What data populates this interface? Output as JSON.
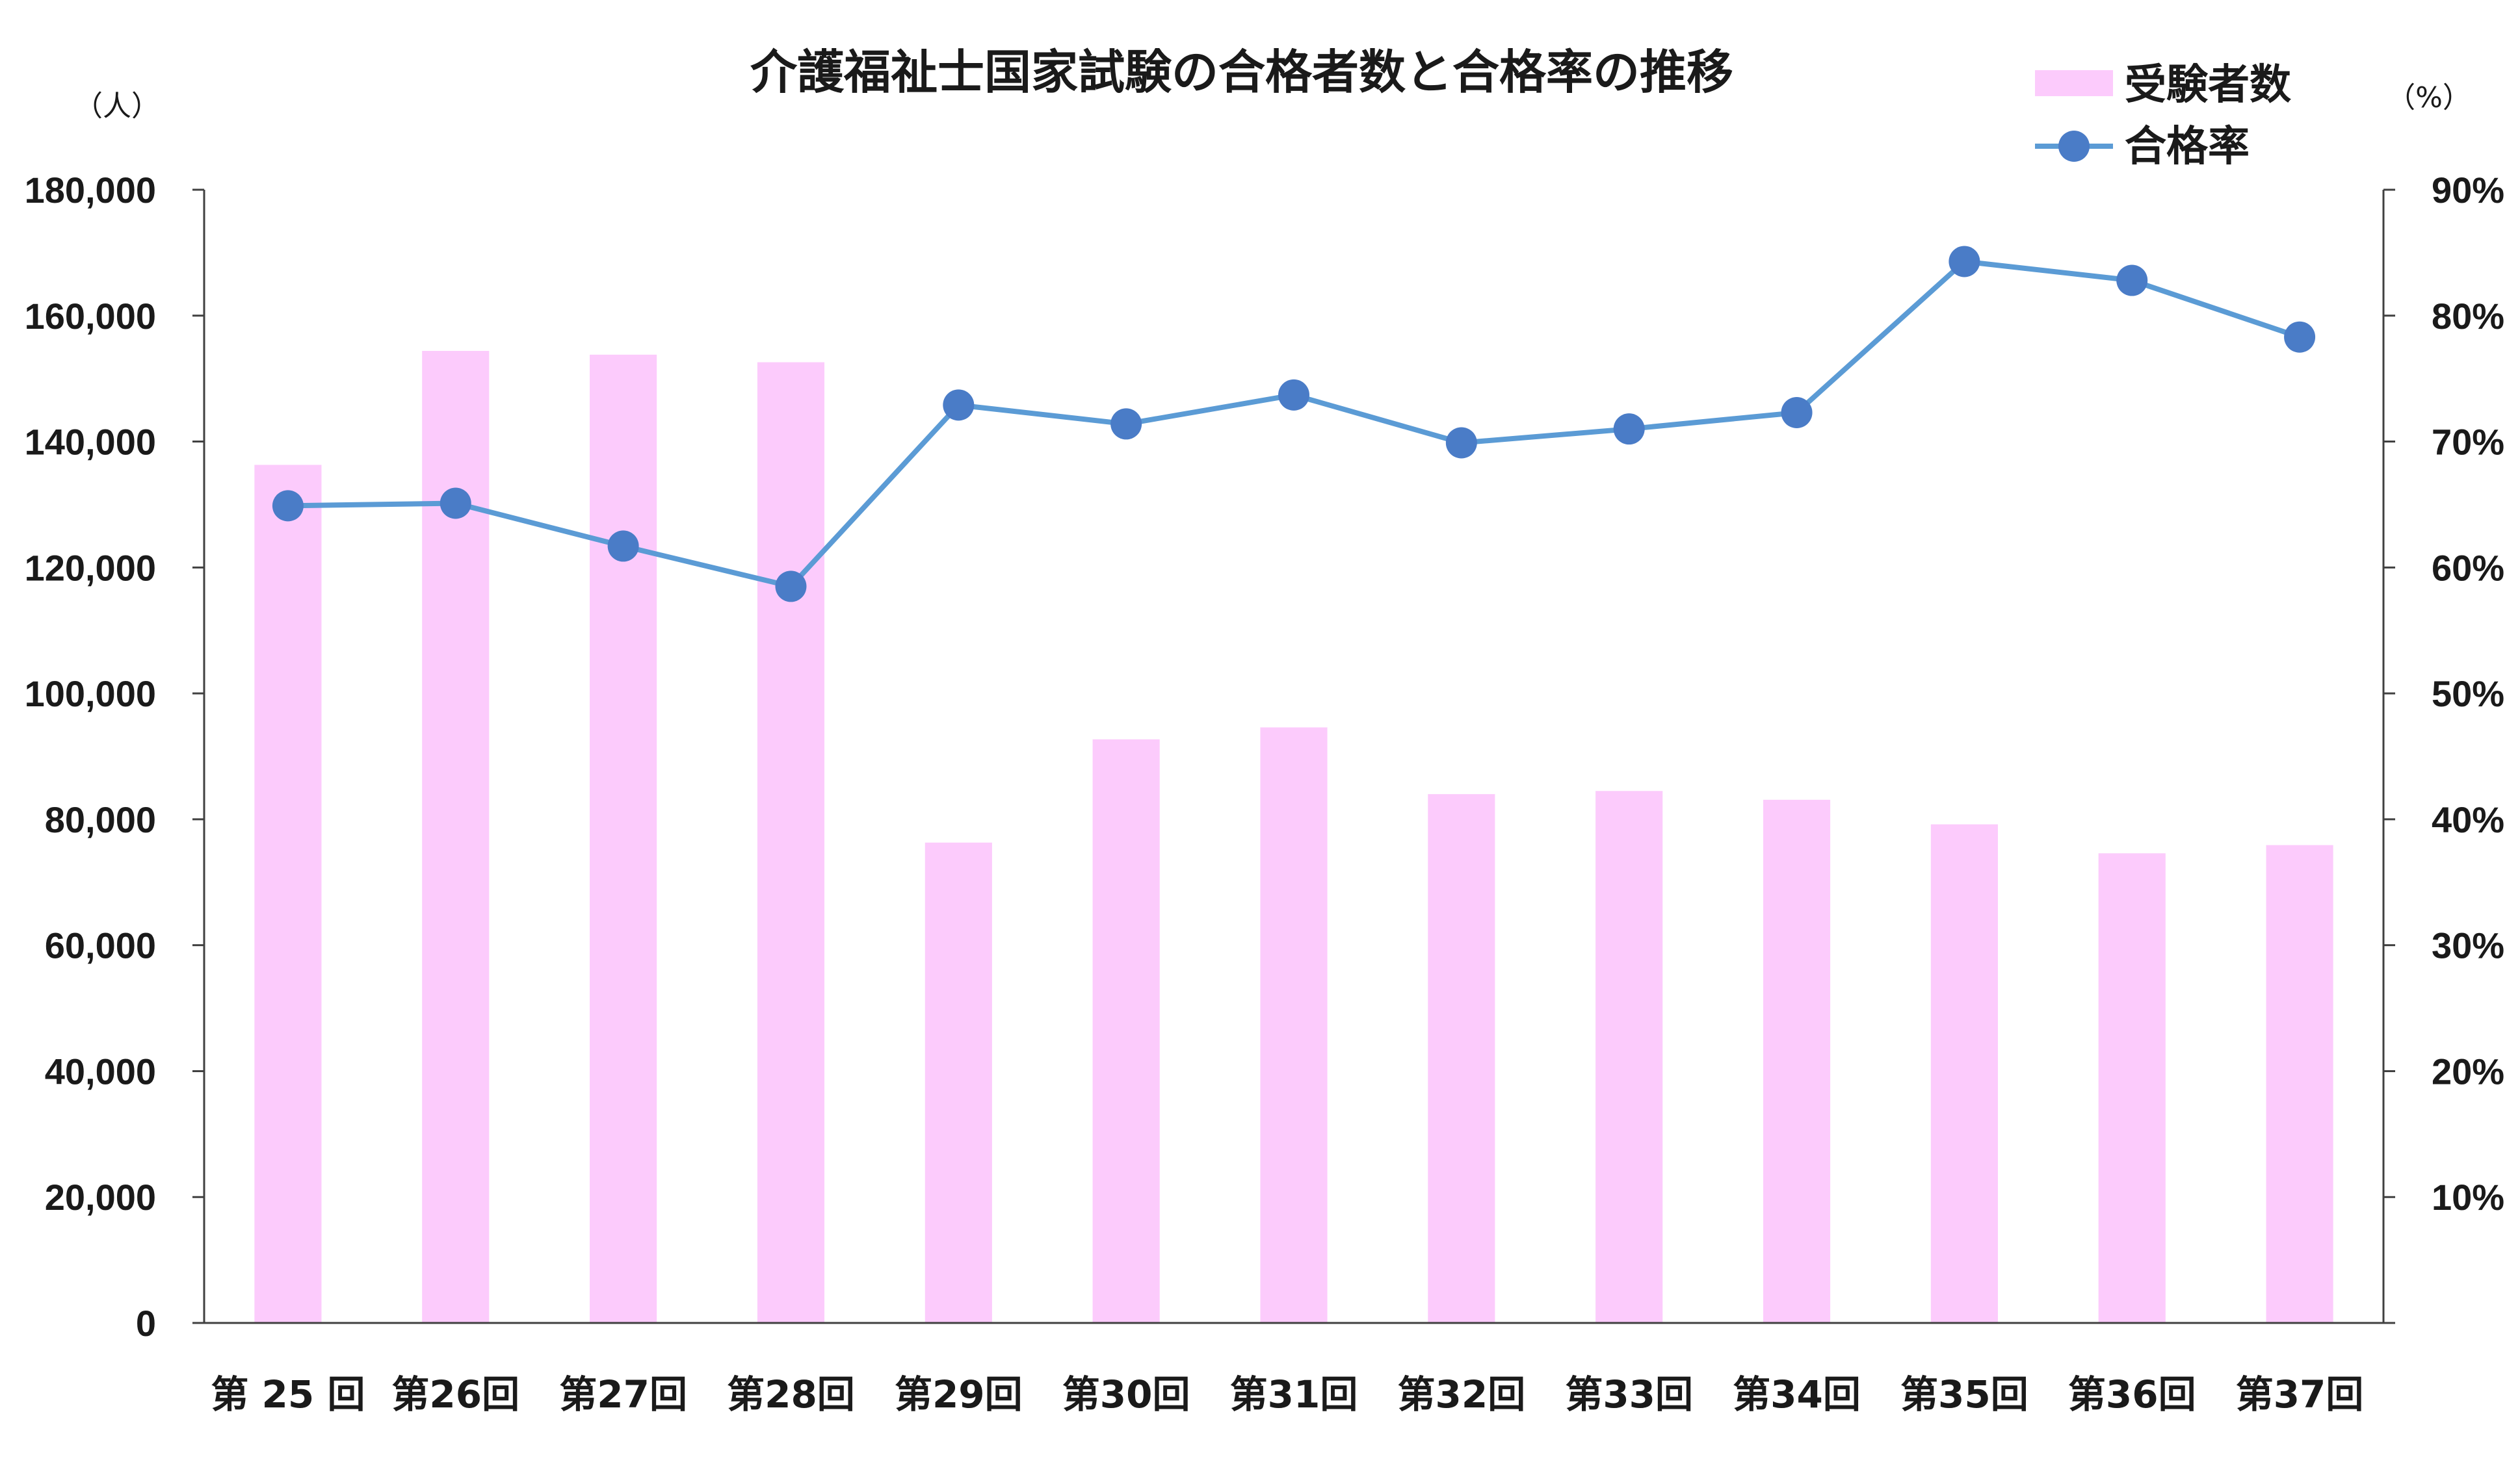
{
  "chart_data": {
    "type": "bar",
    "title": "介護福祉士国家試験の合格者数と合格率の推移",
    "y_left_unit": "（人）",
    "y_right_unit": "（%）",
    "categories": [
      "第 25 回",
      "第26回",
      "第27回",
      "第28回",
      "第29回",
      "第30回",
      "第31回",
      "第32回",
      "第33回",
      "第34回",
      "第35回",
      "第36回",
      "第37回"
    ],
    "series": [
      {
        "name": "受験者数",
        "type": "bar",
        "axis": "left",
        "color": "#fccbfc",
        "values": [
          136300,
          154400,
          153800,
          152600,
          76300,
          92700,
          94600,
          84000,
          84500,
          83100,
          79200,
          74600,
          75900
        ]
      },
      {
        "name": "合格率",
        "type": "line",
        "axis": "right",
        "color": "#4a7cc7",
        "line_color": "#5b9bd5",
        "values": [
          64.9,
          65.1,
          61.7,
          58.5,
          72.9,
          71.4,
          73.7,
          69.9,
          71.0,
          72.3,
          84.3,
          82.8,
          78.3
        ]
      }
    ],
    "y_left_ticks": [
      "0",
      "20,000",
      "40,000",
      "60,000",
      "80,000",
      "100,000",
      "120,000",
      "140,000",
      "160,000",
      "180,000"
    ],
    "y_left_range": [
      0,
      180000
    ],
    "y_right_ticks": [
      "10%",
      "20%",
      "30%",
      "40%",
      "50%",
      "60%",
      "70%",
      "80%",
      "90%"
    ],
    "y_right_range": [
      0,
      90
    ],
    "legend_position": "top-right",
    "grid": false
  }
}
